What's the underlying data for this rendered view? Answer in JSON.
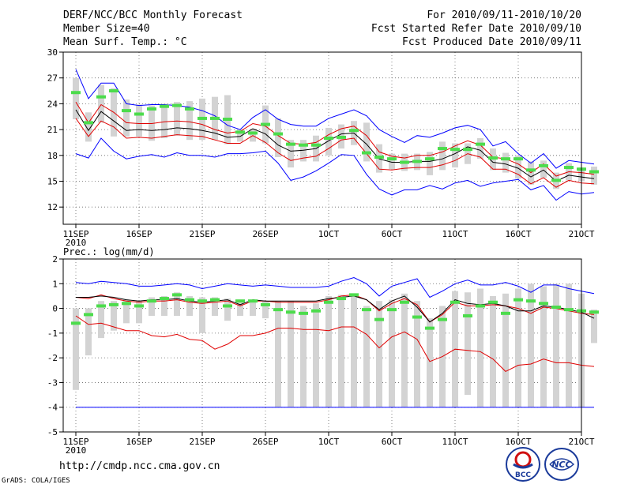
{
  "header": {
    "title": "DERF/NCC/BCC Monthly Forecast",
    "member_size": "Member Size=40",
    "variable": "Mean Surf. Temp.: °C",
    "period": "For 2010/09/11-2010/10/20",
    "started": "Fcst Started Refer Date 2010/09/10",
    "produced": "Fcst Produced Date 2010/09/11"
  },
  "footer": {
    "url": "http://cmdp.ncc.cma.gov.cn",
    "grads": "GrADS: COLA/IGES",
    "logo_bcc": "BCC",
    "logo_ncc": "NCC"
  },
  "colors": {
    "box": "#d3d3d3",
    "median": "#4cdc4c",
    "max": "#0000ff",
    "mean": "#000000",
    "spread": "#e00000",
    "grid": "#666666"
  },
  "chart_data": [
    {
      "type": "box-line",
      "title": "Mean Surf. Temp.: °C",
      "ylim": [
        10,
        30
      ],
      "yticks": [
        12,
        15,
        18,
        21,
        24,
        27,
        30
      ],
      "x_days": [
        0,
        5,
        10,
        15,
        20,
        25,
        30,
        35,
        40
      ],
      "x_tick_labels": [
        "11SEP",
        "16SEP",
        "21SEP",
        "26SEP",
        "1OCT",
        "6OCT",
        "11OCT",
        "16OCT",
        "21OCT"
      ],
      "x_year_label": "2010",
      "series": [
        {
          "name": "max",
          "color": "#0000ff",
          "values": [
            28.0,
            24.6,
            26.4,
            26.4,
            24.0,
            23.8,
            23.9,
            23.9,
            23.8,
            23.6,
            23.2,
            22.6,
            21.5,
            21.0,
            22.4,
            23.3,
            22.2,
            21.6,
            21.4,
            21.4,
            22.3,
            22.8,
            23.3,
            22.6,
            21.0,
            20.2,
            19.5,
            20.3,
            20.1,
            20.6,
            21.2,
            21.5,
            21.0,
            19.1,
            19.6,
            18.2,
            17.1,
            18.2,
            16.5,
            17.4,
            17.2,
            17.0
          ]
        },
        {
          "name": "min",
          "color": "#0000ff",
          "values": [
            18.2,
            17.7,
            20.0,
            18.5,
            17.6,
            17.9,
            18.1,
            17.8,
            18.3,
            18.0,
            18.0,
            17.8,
            18.2,
            18.2,
            18.3,
            18.5,
            17.1,
            15.1,
            15.5,
            16.2,
            17.1,
            18.1,
            18.0,
            15.8,
            14.1,
            13.4,
            14.0,
            14.0,
            14.5,
            14.1,
            14.8,
            15.1,
            14.4,
            14.8,
            15.0,
            15.2,
            14.0,
            14.5,
            12.8,
            13.8,
            13.5,
            13.7
          ]
        },
        {
          "name": "upper-spread",
          "color": "#e00000",
          "values": [
            24.2,
            21.8,
            23.9,
            23.0,
            21.8,
            21.7,
            21.7,
            21.9,
            22.0,
            21.9,
            21.6,
            21.0,
            20.6,
            20.8,
            21.7,
            21.4,
            20.3,
            19.4,
            19.3,
            19.5,
            20.4,
            21.1,
            21.4,
            20.3,
            18.4,
            17.9,
            17.7,
            18.0,
            18.0,
            18.4,
            19.1,
            19.7,
            19.2,
            17.8,
            17.6,
            17.0,
            16.0,
            17.0,
            15.6,
            16.1,
            16.0,
            15.8
          ]
        },
        {
          "name": "mean",
          "color": "#000000",
          "values": [
            23.3,
            20.9,
            23.1,
            22.0,
            20.9,
            21.0,
            20.9,
            21.0,
            21.2,
            21.1,
            20.9,
            20.6,
            20.1,
            20.2,
            21.1,
            20.5,
            19.2,
            18.5,
            18.6,
            18.8,
            19.7,
            20.5,
            20.6,
            19.3,
            17.6,
            17.2,
            17.2,
            17.3,
            17.3,
            17.6,
            18.2,
            19.0,
            18.6,
            17.2,
            17.0,
            16.5,
            15.5,
            16.3,
            15.0,
            15.7,
            15.5,
            15.3
          ]
        },
        {
          "name": "lower-spread",
          "color": "#e00000",
          "values": [
            22.3,
            20.2,
            22.0,
            21.3,
            20.0,
            20.1,
            20.0,
            20.2,
            20.4,
            20.3,
            20.2,
            19.8,
            19.4,
            19.4,
            20.3,
            19.5,
            18.3,
            17.4,
            17.7,
            17.9,
            18.8,
            19.8,
            20.0,
            18.2,
            16.4,
            16.3,
            16.5,
            16.6,
            16.6,
            16.9,
            17.4,
            18.2,
            17.8,
            16.4,
            16.4,
            15.8,
            14.7,
            15.4,
            14.3,
            15.1,
            14.8,
            14.7
          ]
        }
      ],
      "boxes": [
        {
          "x": 0,
          "low": 22.2,
          "high": 27.0,
          "median": 25.3
        },
        {
          "x": 1,
          "low": 19.6,
          "high": 23.0,
          "median": 21.8
        },
        {
          "x": 2,
          "low": 21.8,
          "high": 26.2,
          "median": 24.8
        },
        {
          "x": 3,
          "low": 20.2,
          "high": 25.8,
          "median": 25.5
        },
        {
          "x": 4,
          "low": 20.2,
          "high": 24.5,
          "median": 23.2
        },
        {
          "x": 5,
          "low": 20.2,
          "high": 23.9,
          "median": 22.8
        },
        {
          "x": 6,
          "low": 19.7,
          "high": 23.8,
          "median": 23.4
        },
        {
          "x": 7,
          "low": 20.0,
          "high": 24.0,
          "median": 23.7
        },
        {
          "x": 8,
          "low": 20.3,
          "high": 24.2,
          "median": 23.8
        },
        {
          "x": 9,
          "low": 19.8,
          "high": 24.3,
          "median": 23.4
        },
        {
          "x": 10,
          "low": 19.8,
          "high": 24.6,
          "median": 22.3
        },
        {
          "x": 11,
          "low": 19.8,
          "high": 24.8,
          "median": 22.3
        },
        {
          "x": 12,
          "low": 19.3,
          "high": 25.0,
          "median": 22.2
        },
        {
          "x": 13,
          "low": 19.6,
          "high": 21.0,
          "median": 20.7
        },
        {
          "x": 14,
          "low": 19.6,
          "high": 21.1,
          "median": 20.6
        },
        {
          "x": 15,
          "low": 19.4,
          "high": 23.8,
          "median": 21.6
        },
        {
          "x": 16,
          "low": 17.8,
          "high": 22.3,
          "median": 20.5
        },
        {
          "x": 17,
          "low": 16.6,
          "high": 19.8,
          "median": 19.3
        },
        {
          "x": 18,
          "low": 17.3,
          "high": 19.8,
          "median": 19.2
        },
        {
          "x": 19,
          "low": 17.3,
          "high": 20.3,
          "median": 19.2
        },
        {
          "x": 20,
          "low": 18.0,
          "high": 21.2,
          "median": 20.0
        },
        {
          "x": 21,
          "low": 18.8,
          "high": 21.6,
          "median": 20.1
        },
        {
          "x": 22,
          "low": 19.2,
          "high": 22.0,
          "median": 20.9
        },
        {
          "x": 23,
          "low": 17.3,
          "high": 21.8,
          "median": 18.3
        },
        {
          "x": 24,
          "low": 16.0,
          "high": 19.3,
          "median": 17.8
        },
        {
          "x": 25,
          "low": 16.4,
          "high": 18.2,
          "median": 17.6
        },
        {
          "x": 26,
          "low": 16.2,
          "high": 18.2,
          "median": 17.2
        },
        {
          "x": 27,
          "low": 16.3,
          "high": 18.2,
          "median": 17.3
        },
        {
          "x": 28,
          "low": 15.7,
          "high": 18.4,
          "median": 17.6
        },
        {
          "x": 29,
          "low": 16.3,
          "high": 19.6,
          "median": 18.8
        },
        {
          "x": 30,
          "low": 16.6,
          "high": 19.4,
          "median": 18.7
        },
        {
          "x": 31,
          "low": 17.0,
          "high": 19.4,
          "median": 18.7
        },
        {
          "x": 32,
          "low": 17.6,
          "high": 20.0,
          "median": 19.3
        },
        {
          "x": 33,
          "low": 16.3,
          "high": 18.8,
          "median": 17.7
        },
        {
          "x": 34,
          "low": 16.0,
          "high": 18.3,
          "median": 17.6
        },
        {
          "x": 35,
          "low": 15.3,
          "high": 18.0,
          "median": 17.6
        },
        {
          "x": 36,
          "low": 14.6,
          "high": 17.3,
          "median": 16.3
        },
        {
          "x": 37,
          "low": 15.4,
          "high": 17.4,
          "median": 16.8
        },
        {
          "x": 38,
          "low": 14.1,
          "high": 16.0,
          "median": 15.1
        },
        {
          "x": 39,
          "low": 15.1,
          "high": 17.1,
          "median": 16.6
        },
        {
          "x": 40,
          "low": 15.0,
          "high": 16.6,
          "median": 16.4
        },
        {
          "x": 41,
          "low": 14.6,
          "high": 16.7,
          "median": 16.1
        }
      ]
    },
    {
      "type": "box-line",
      "title": "Prec.: log(mm/d)",
      "ylim": [
        -5,
        2
      ],
      "yticks": [
        -5,
        -4,
        -3,
        -2,
        -1,
        0,
        1,
        2
      ],
      "x_days": [
        0,
        5,
        10,
        15,
        20,
        25,
        30,
        35,
        40
      ],
      "x_tick_labels": [
        "11SEP",
        "16SEP",
        "21SEP",
        "26SEP",
        "1OCT",
        "6OCT",
        "11OCT",
        "16OCT",
        "21OCT"
      ],
      "x_year_label": "2010",
      "series": [
        {
          "name": "max",
          "color": "#0000ff",
          "values": [
            1.05,
            1.0,
            1.1,
            1.05,
            1.0,
            0.9,
            0.9,
            0.95,
            1.0,
            0.95,
            0.8,
            0.9,
            1.0,
            0.95,
            0.9,
            0.95,
            0.9,
            0.85,
            0.85,
            0.85,
            0.9,
            1.1,
            1.25,
            1.0,
            0.5,
            0.9,
            1.05,
            1.2,
            0.45,
            0.7,
            1.0,
            1.15,
            0.95,
            0.95,
            1.05,
            0.9,
            0.65,
            0.95,
            0.95,
            0.8,
            0.7,
            0.6
          ]
        },
        {
          "name": "min",
          "color": "#0000ff",
          "values": [
            -4.0,
            -4.0,
            -4.0,
            -4.0,
            -4.0,
            -4.0,
            -4.0,
            -4.0,
            -4.0,
            -4.0,
            -4.0,
            -4.0,
            -4.0,
            -4.0,
            -4.0,
            -4.0,
            -4.0,
            -4.0,
            -4.0,
            -4.0,
            -4.0,
            -4.0,
            -4.0,
            -4.0,
            -4.0,
            -4.0,
            -4.0,
            -4.0,
            -4.0,
            -4.0,
            -4.0,
            -4.0,
            -4.0,
            -4.0,
            -4.0,
            -4.0,
            -4.0,
            -4.0,
            -4.0,
            -4.0,
            -4.0,
            -4.0
          ]
        },
        {
          "name": "upper-spread",
          "color": "#e00000",
          "values": [
            0.45,
            0.4,
            0.55,
            0.4,
            0.3,
            0.25,
            0.3,
            0.3,
            0.35,
            0.25,
            0.2,
            0.25,
            0.3,
            0.1,
            0.3,
            0.3,
            0.25,
            0.25,
            0.25,
            0.25,
            0.35,
            0.5,
            0.55,
            0.35,
            -0.1,
            0.2,
            0.4,
            0.15,
            -0.55,
            -0.25,
            0.25,
            0.1,
            0.1,
            0.15,
            0.1,
            0.0,
            -0.2,
            0.05,
            0.0,
            -0.1,
            -0.2,
            -0.25
          ]
        },
        {
          "name": "mean",
          "color": "#000000",
          "values": [
            0.45,
            0.45,
            0.5,
            0.45,
            0.35,
            0.3,
            0.35,
            0.35,
            0.4,
            0.3,
            0.25,
            0.3,
            0.35,
            0.15,
            0.35,
            0.3,
            0.3,
            0.3,
            0.3,
            0.3,
            0.4,
            0.45,
            0.5,
            0.35,
            -0.05,
            0.3,
            0.5,
            0.05,
            -0.55,
            -0.2,
            0.35,
            0.2,
            0.15,
            0.2,
            0.1,
            -0.1,
            -0.1,
            0.1,
            0.05,
            -0.05,
            -0.15,
            -0.4
          ]
        },
        {
          "name": "lower-spread",
          "color": "#e00000",
          "values": [
            -0.3,
            -0.65,
            -0.6,
            -0.75,
            -0.9,
            -0.9,
            -1.1,
            -1.15,
            -1.05,
            -1.25,
            -1.3,
            -1.65,
            -1.45,
            -1.1,
            -1.1,
            -1.0,
            -0.8,
            -0.8,
            -0.85,
            -0.85,
            -0.9,
            -0.75,
            -0.75,
            -1.05,
            -1.6,
            -1.15,
            -0.95,
            -1.25,
            -2.15,
            -1.95,
            -1.65,
            -1.7,
            -1.75,
            -2.05,
            -2.55,
            -2.3,
            -2.25,
            -2.05,
            -2.2,
            -2.2,
            -2.3,
            -2.35
          ]
        }
      ],
      "boxes": [
        {
          "x": 0,
          "low": -3.3,
          "high": 0.0,
          "median": -0.6
        },
        {
          "x": 1,
          "low": -1.9,
          "high": 0.0,
          "median": -0.25
        },
        {
          "x": 2,
          "low": -1.2,
          "high": 0.3,
          "median": 0.1
        },
        {
          "x": 3,
          "low": -0.9,
          "high": 0.3,
          "median": 0.15
        },
        {
          "x": 4,
          "low": -0.6,
          "high": 0.35,
          "median": 0.2
        },
        {
          "x": 5,
          "low": -0.6,
          "high": 0.3,
          "median": 0.1
        },
        {
          "x": 6,
          "low": -0.3,
          "high": 0.45,
          "median": 0.3
        },
        {
          "x": 7,
          "low": -0.3,
          "high": 0.5,
          "median": 0.4
        },
        {
          "x": 8,
          "low": -0.3,
          "high": 0.65,
          "median": 0.55
        },
        {
          "x": 9,
          "low": -0.3,
          "high": 0.5,
          "median": 0.35
        },
        {
          "x": 10,
          "low": -1.0,
          "high": 0.45,
          "median": 0.3
        },
        {
          "x": 11,
          "low": -0.3,
          "high": 0.45,
          "median": 0.35
        },
        {
          "x": 12,
          "low": -0.5,
          "high": 0.4,
          "median": 0.1
        },
        {
          "x": 13,
          "low": -0.3,
          "high": 0.35,
          "median": 0.3
        },
        {
          "x": 14,
          "low": -0.3,
          "high": 0.35,
          "median": 0.3
        },
        {
          "x": 15,
          "low": -0.4,
          "high": 0.3,
          "median": 0.15
        },
        {
          "x": 16,
          "low": -4.0,
          "high": 0.3,
          "median": -0.05
        },
        {
          "x": 17,
          "low": -4.0,
          "high": 0.3,
          "median": -0.15
        },
        {
          "x": 18,
          "low": -4.0,
          "high": 0.1,
          "median": -0.2
        },
        {
          "x": 19,
          "low": -4.0,
          "high": 0.2,
          "median": -0.1
        },
        {
          "x": 20,
          "low": -4.0,
          "high": 0.5,
          "median": 0.25
        },
        {
          "x": 21,
          "low": -4.0,
          "high": 0.55,
          "median": 0.4
        },
        {
          "x": 22,
          "low": -4.0,
          "high": 0.6,
          "median": 0.55
        },
        {
          "x": 23,
          "low": -4.0,
          "high": 0.1,
          "median": -0.05
        },
        {
          "x": 24,
          "low": -4.0,
          "high": 0.3,
          "median": -0.45
        },
        {
          "x": 25,
          "low": -4.0,
          "high": 0.35,
          "median": -0.05
        },
        {
          "x": 26,
          "low": -4.0,
          "high": 0.6,
          "median": 0.25
        },
        {
          "x": 27,
          "low": -4.0,
          "high": 0.3,
          "median": -0.35
        },
        {
          "x": 28,
          "low": -4.0,
          "high": -0.4,
          "median": -0.8
        },
        {
          "x": 29,
          "low": -4.0,
          "high": 0.1,
          "median": -0.45
        },
        {
          "x": 30,
          "low": -4.0,
          "high": 0.7,
          "median": 0.25
        },
        {
          "x": 31,
          "low": -3.5,
          "high": 0.65,
          "median": -0.3
        },
        {
          "x": 32,
          "low": -4.0,
          "high": 0.8,
          "median": 0.1
        },
        {
          "x": 33,
          "low": -4.0,
          "high": 0.5,
          "median": 0.25
        },
        {
          "x": 34,
          "low": -4.0,
          "high": 0.6,
          "median": -0.2
        },
        {
          "x": 35,
          "low": -4.0,
          "high": 0.8,
          "median": 0.35
        },
        {
          "x": 36,
          "low": -4.0,
          "high": 1.0,
          "median": 0.3
        },
        {
          "x": 37,
          "low": -4.0,
          "high": 0.9,
          "median": 0.2
        },
        {
          "x": 38,
          "low": -4.0,
          "high": 1.0,
          "median": 0.05
        },
        {
          "x": 39,
          "low": -4.0,
          "high": 1.0,
          "median": -0.05
        },
        {
          "x": 40,
          "low": -4.0,
          "high": 0.6,
          "median": -0.1
        },
        {
          "x": 41,
          "low": -1.4,
          "high": -0.05,
          "median": -0.15
        }
      ]
    }
  ]
}
